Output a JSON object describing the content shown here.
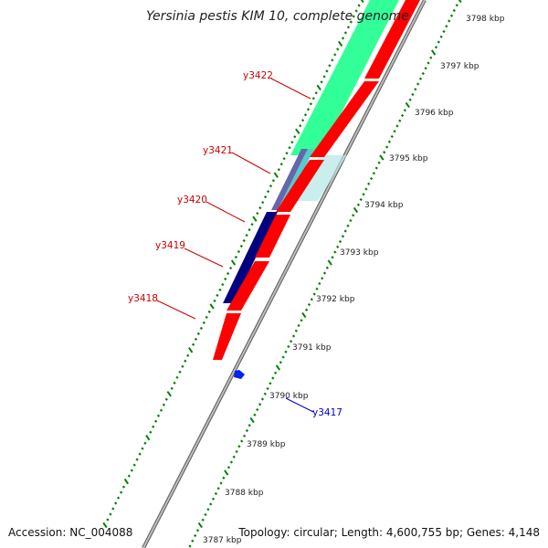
{
  "title": "Yersinia pestis KIM 10, complete genome",
  "accession": "Accession: NC_004088",
  "topology": "Topology: circular; Length: 4,600,755 bp; Genes: 4,148",
  "colors": {
    "forward_gene": "#ff0000",
    "reverse_gene": "#000080",
    "cds_green": "#33ff99",
    "ticks": "#008000",
    "backbone": "#888888",
    "forward_label": "#cc0000",
    "reverse_label": "#0000cc"
  },
  "scale_labels": [
    "3798 kbp",
    "3797 kbp",
    "3796 kbp",
    "3795 kbp",
    "3794 kbp",
    "3793 kbp",
    "3792 kbp",
    "3791 kbp",
    "3790 kbp",
    "3789 kbp",
    "3788 kbp",
    "3787 kbp"
  ],
  "gene_labels": [
    {
      "name": "y3422",
      "strand": "forward"
    },
    {
      "name": "y3421",
      "strand": "forward"
    },
    {
      "name": "y3420",
      "strand": "forward"
    },
    {
      "name": "y3419",
      "strand": "forward"
    },
    {
      "name": "y3418",
      "strand": "forward"
    },
    {
      "name": "y3417",
      "strand": "reverse"
    }
  ]
}
